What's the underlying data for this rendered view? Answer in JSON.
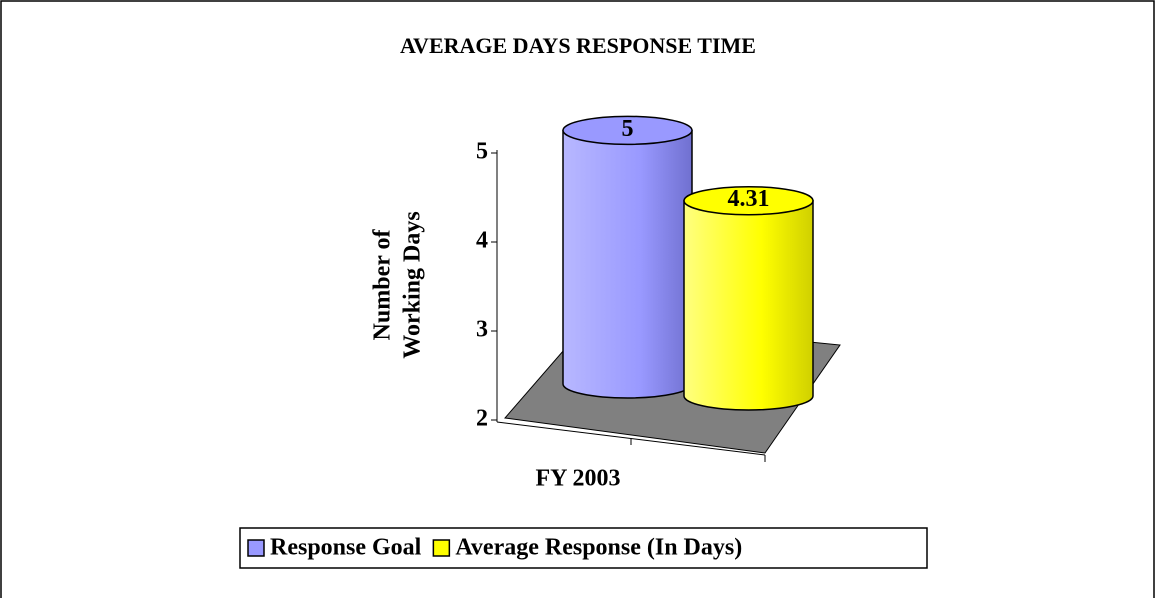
{
  "chart_data": {
    "type": "bar",
    "title": "AVERAGE DAYS RESPONSE TIME",
    "ylabel": [
      "Number of",
      "Working Days"
    ],
    "categories": [
      "FY 2003"
    ],
    "series": [
      {
        "name": "Response Goal",
        "color": "#9999ff",
        "values": [
          5
        ]
      },
      {
        "name": "Average Response (In Days)",
        "color": "#ffff00",
        "values": [
          4.31
        ]
      }
    ],
    "ylim": [
      2,
      5
    ],
    "yticks": [
      2,
      3,
      4,
      5
    ],
    "legend": "bottom"
  }
}
